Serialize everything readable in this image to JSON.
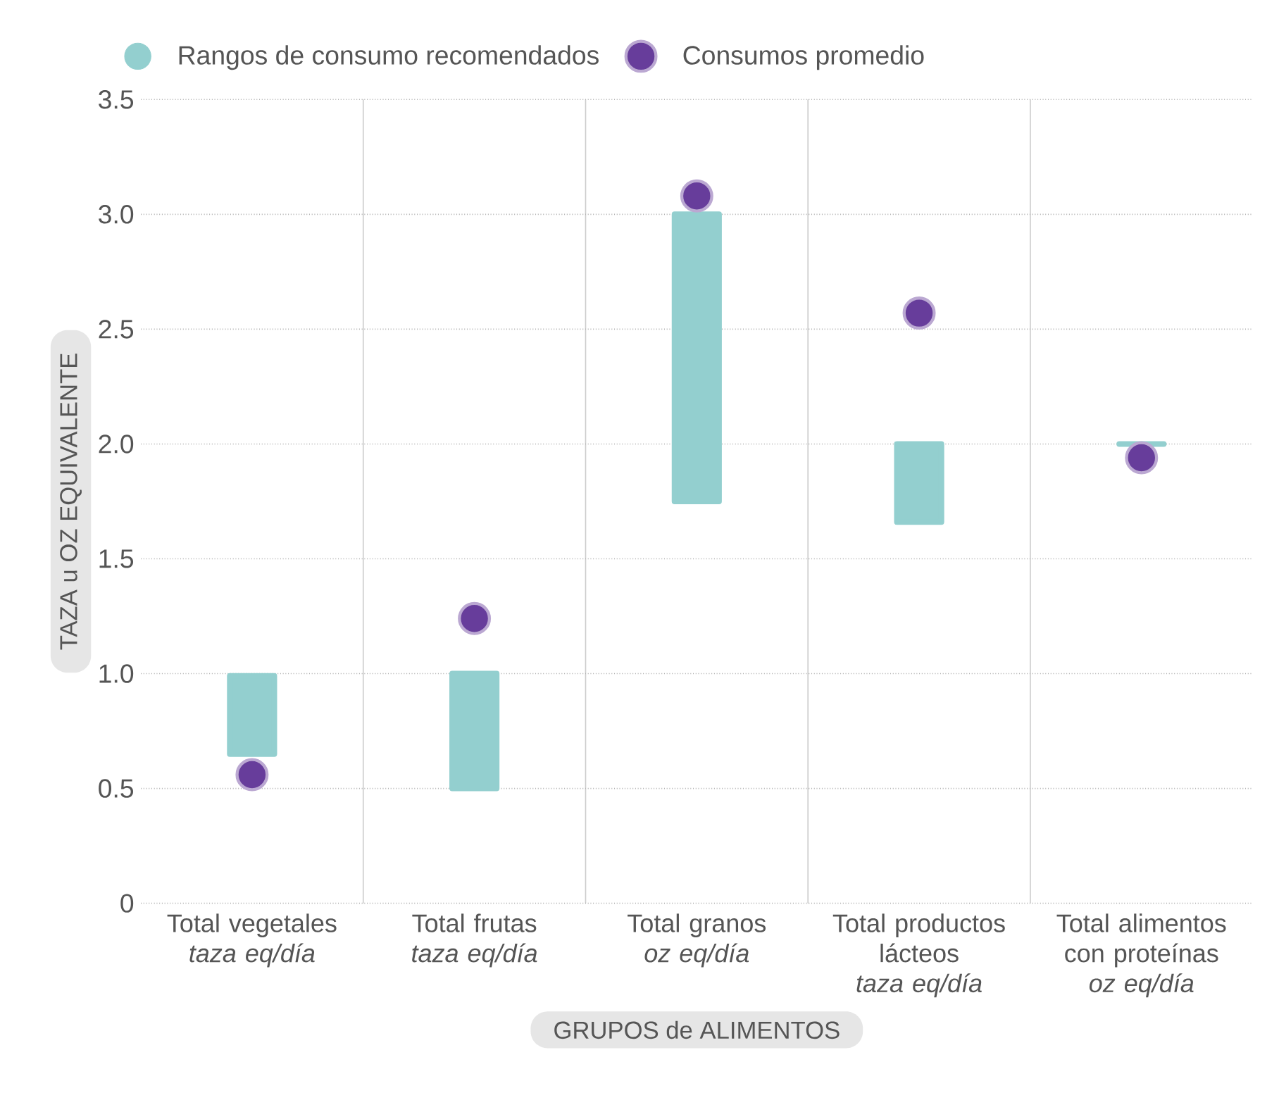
{
  "chart_data": {
    "type": "bar",
    "xlabel": "GRUPOS de ALIMENTOS",
    "ylabel": "TAZA u OZ EQUIVALENTE",
    "categories": [
      "Total vegetales *taza eq/día*",
      "Total frutas *taza eq/día*",
      "Total granos *oz eq/día*",
      "Total productos lácteos *taza eq/día*",
      "Total alimentos con proteínas *oz eq/día*"
    ],
    "series": [
      {
        "name": "Rangos de consumo recomendados",
        "color": "#93cfcf",
        "base": [
          0.65,
          0.5,
          1.75,
          1.66,
          2.0
        ],
        "values": [
          0.34,
          0.5,
          1.25,
          0.34,
          0
        ]
      },
      {
        "name": "Consumos promedio",
        "type": "scatter",
        "color": "#673d9b",
        "x": [
          "Total vegetales *taza eq/día*",
          "Total frutas *taza eq/día*",
          "Total granos *oz eq/día*",
          "Total productos lácteos *taza eq/día*",
          "Total alimentos con proteínas *oz eq/día*"
        ],
        "values": [
          0.56,
          1.24,
          3.08,
          2.57,
          1.94
        ]
      }
    ],
    "ylim": [
      0,
      3.5
    ],
    "yticks": [
      0,
      {
        "value": 0.5,
        "label": "0.5"
      },
      {
        "value": 1,
        "label": "1.0"
      },
      {
        "value": 1.5,
        "label": "1.5"
      },
      {
        "value": 2,
        "label": "2.0"
      },
      {
        "value": 2.5,
        "label": "2.5"
      },
      {
        "value": 3,
        "label": "3.0"
      },
      {
        "value": 3.5,
        "label": "3.5"
      }
    ],
    "grid": true,
    "legend": "top left",
    "marker": "circle"
  }
}
